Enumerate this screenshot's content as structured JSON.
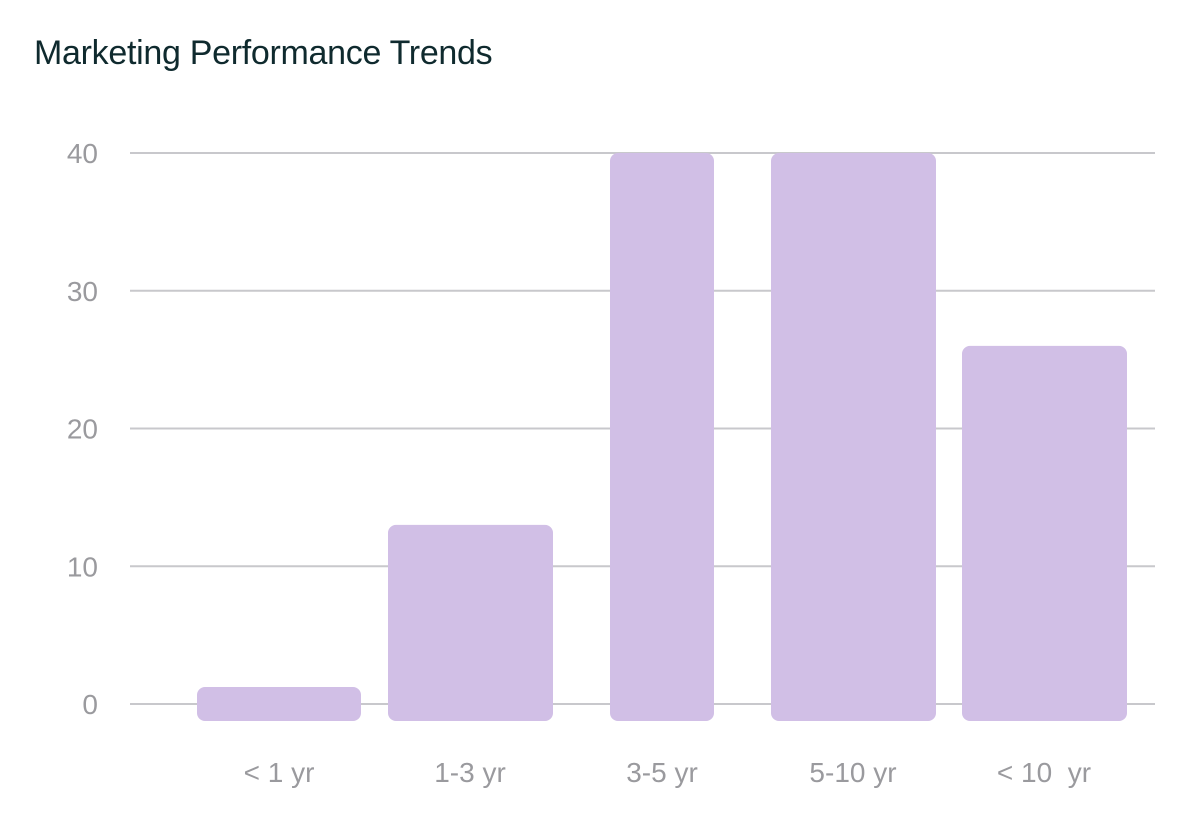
{
  "chart_data": {
    "type": "bar",
    "title": "Marketing Performance Trends",
    "categories": [
      "< 1 yr",
      "1-3 yr",
      "3-5 yr",
      "5-10 yr",
      "< 10  yr"
    ],
    "values": [
      1,
      13,
      40,
      40,
      26
    ],
    "yticks": [
      "0",
      "10",
      "20",
      "30",
      "40"
    ],
    "ylim": [
      0,
      40
    ],
    "xlabel": "",
    "ylabel": "",
    "grid": true,
    "legend": "none",
    "bar_color": "#d1bfe6"
  }
}
